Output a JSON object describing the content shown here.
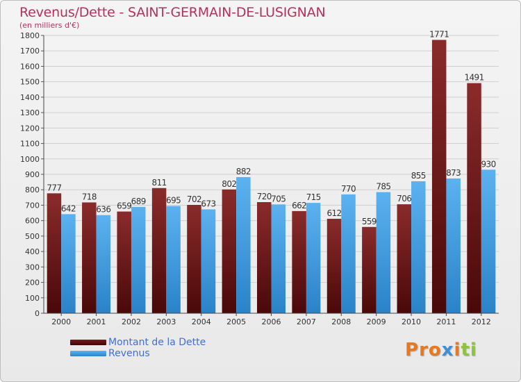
{
  "header": {
    "title": "Revenus/Dette - SAINT-GERMAIN-DE-LUSIGNAN",
    "subtitle": "(en milliers d'€)"
  },
  "colors": {
    "dette": "#7a1a1a",
    "revenus": "#4aa3e6",
    "title": "#b5315b",
    "legend_text": "#3f6fd6"
  },
  "legend": {
    "items": [
      {
        "label": "Montant de la Dette",
        "color": "#7a1a1a"
      },
      {
        "label": "Revenus",
        "color": "#4aa3e6"
      }
    ]
  },
  "logo": {
    "text": "Proxiti",
    "letter_colors": [
      "#e8781d",
      "#e8781d",
      "#e8781d",
      "#3d8fd9",
      "#e8781d",
      "#8cc43b",
      "#8cc43b"
    ]
  },
  "chart_data": {
    "type": "bar",
    "title": "Revenus/Dette - SAINT-GERMAIN-DE-LUSIGNAN",
    "subtitle": "(en milliers d'€)",
    "xlabel": "",
    "ylabel": "",
    "categories": [
      "2000",
      "2001",
      "2002",
      "2003",
      "2004",
      "2005",
      "2006",
      "2007",
      "2008",
      "2009",
      "2010",
      "2011",
      "2012"
    ],
    "series": [
      {
        "name": "Montant de la Dette",
        "values": [
          777,
          718,
          659,
          811,
          702,
          802,
          720,
          662,
          612,
          559,
          706,
          1771,
          1491
        ]
      },
      {
        "name": "Revenus",
        "values": [
          642,
          636,
          689,
          695,
          673,
          882,
          705,
          715,
          770,
          785,
          855,
          873,
          930
        ]
      }
    ],
    "ylim": [
      0,
      1800
    ],
    "yticks": [
      0,
      100,
      200,
      300,
      400,
      500,
      600,
      700,
      800,
      900,
      1000,
      1100,
      1200,
      1300,
      1400,
      1500,
      1600,
      1700,
      1800
    ],
    "grid": true,
    "legend_position": "bottom-left"
  }
}
